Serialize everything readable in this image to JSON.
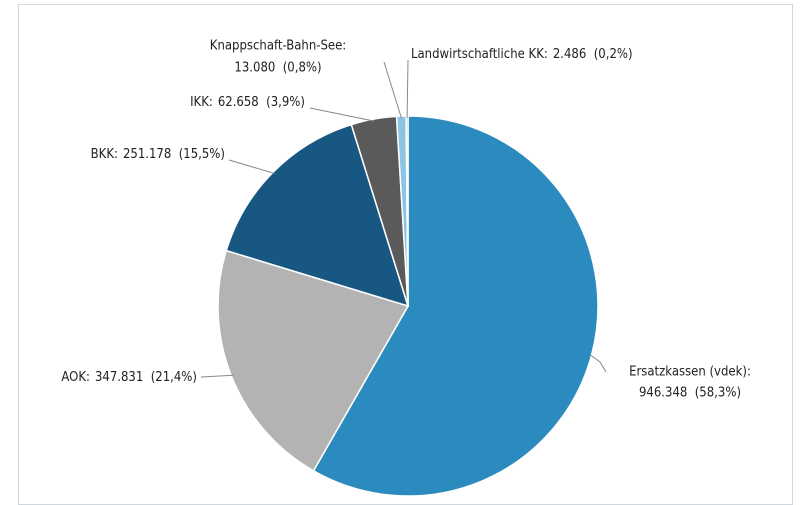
{
  "chart_data": {
    "type": "pie",
    "categories": [
      "Ersatzkassen (vdek):",
      "AOK:",
      "BKK:",
      "IKK:",
      "Knappschaft-Bahn-See:",
      "Landwirtschaftliche KK:"
    ],
    "values": [
      946348,
      347831,
      251178,
      62658,
      13080,
      2486
    ],
    "value_labels": [
      "946.348  (58,3%)",
      "347.831  (21,4%)",
      "251.178  (15,5%)",
      "62.658  (3,9%)",
      "13.080  (0,8%)",
      "2.486  (0,2%)"
    ],
    "colors": [
      "#2b8bbf",
      "#b3b3b3",
      "#175782",
      "#5a5a5a",
      "#8cc4e6",
      "#4aa0d2"
    ]
  }
}
